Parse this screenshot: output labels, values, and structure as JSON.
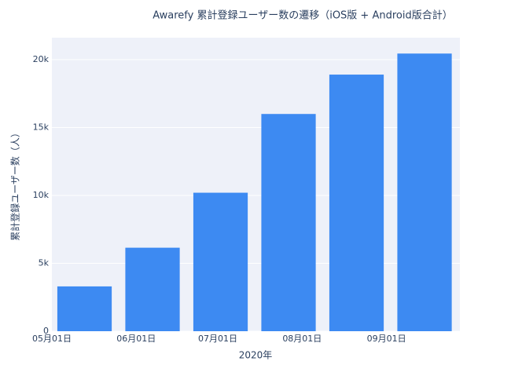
{
  "chart_data": {
    "type": "bar",
    "title": "Awarefy 累計登録ユーザー数の遷移（iOS版 + Android版合計）",
    "x_label": "2020年",
    "y_label": "累計登録ユーザー数（人）",
    "x": [
      134,
      159,
      184,
      209,
      234,
      259
    ],
    "values": [
      3300,
      6150,
      10200,
      16000,
      18900,
      20450
    ],
    "color": "#3d8af2",
    "xlim": [
      122,
      272
    ],
    "xticks": [
      {
        "value": 122,
        "label": "05月01日"
      },
      {
        "value": 153,
        "label": "06月01日"
      },
      {
        "value": 183,
        "label": "07月01日"
      },
      {
        "value": 214,
        "label": "08月01日"
      },
      {
        "value": 245,
        "label": "09月01日"
      }
    ],
    "ylim": [
      0,
      21620
    ],
    "yticks": [
      0,
      {
        "value": 5000,
        "label": "5k"
      },
      {
        "value": 10000,
        "label": "10k"
      },
      {
        "value": 15000,
        "label": "15k"
      },
      {
        "value": 20000,
        "label": "20k"
      }
    ],
    "grid": true
  }
}
